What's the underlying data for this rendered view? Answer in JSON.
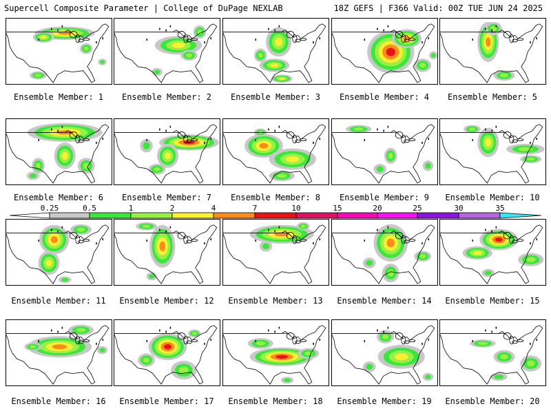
{
  "header": {
    "title_left": "Supercell Composite Parameter | College of DuPage NEXLAB",
    "title_right": "18Z GEFS | F366 Valid: 00Z TUE JUN 24 2025"
  },
  "member_label_prefix": "Ensemble Member: ",
  "members": [
    1,
    2,
    3,
    4,
    5,
    6,
    7,
    8,
    9,
    10,
    11,
    12,
    13,
    14,
    15,
    16,
    17,
    18,
    19,
    20
  ],
  "colorbar": {
    "ticks": [
      "0.25",
      "0.5",
      "1",
      "2",
      "4",
      "7",
      "10",
      "15",
      "20",
      "25",
      "30",
      "35"
    ],
    "colors": [
      "#c8c8c8",
      "#3ce63c",
      "#96f046",
      "#faf032",
      "#fa8c1e",
      "#e61414",
      "#dc1464",
      "#f50ab4",
      "#f514f0",
      "#8c14dc",
      "#b464dc",
      "#3ce6f0"
    ]
  },
  "map": {
    "land_color": "#ffffff",
    "border_color": "#000000",
    "water_color": "#000000"
  },
  "blobs": [
    [
      [
        0.55,
        0.22,
        0.28,
        0.1,
        3
      ],
      [
        0.35,
        0.28,
        0.1,
        0.08,
        2
      ],
      [
        0.75,
        0.45,
        0.06,
        0.08,
        1
      ],
      [
        0.3,
        0.85,
        0.08,
        0.06,
        1
      ],
      [
        0.9,
        0.65,
        0.04,
        0.05,
        0
      ]
    ],
    [
      [
        0.6,
        0.4,
        0.22,
        0.14,
        2
      ],
      [
        0.8,
        0.2,
        0.06,
        0.1,
        1
      ],
      [
        0.7,
        0.55,
        0.08,
        0.08,
        1
      ],
      [
        0.4,
        0.8,
        0.05,
        0.06,
        0
      ]
    ],
    [
      [
        0.52,
        0.35,
        0.12,
        0.22,
        2
      ],
      [
        0.48,
        0.7,
        0.14,
        0.1,
        2
      ],
      [
        0.55,
        0.9,
        0.1,
        0.06,
        2
      ],
      [
        0.35,
        0.55,
        0.06,
        0.1,
        1
      ]
    ],
    [
      [
        0.55,
        0.5,
        0.22,
        0.32,
        4
      ],
      [
        0.7,
        0.3,
        0.14,
        0.14,
        3
      ],
      [
        0.85,
        0.7,
        0.08,
        0.1,
        1
      ],
      [
        0.95,
        0.55,
        0.04,
        0.06,
        0
      ]
    ],
    [
      [
        0.45,
        0.35,
        0.1,
        0.3,
        3
      ],
      [
        0.5,
        0.15,
        0.08,
        0.1,
        1
      ],
      [
        0.6,
        0.85,
        0.1,
        0.08,
        1
      ]
    ],
    [
      [
        0.55,
        0.2,
        0.35,
        0.14,
        3
      ],
      [
        0.55,
        0.55,
        0.1,
        0.2,
        2
      ],
      [
        0.75,
        0.7,
        0.08,
        0.12,
        1
      ],
      [
        0.3,
        0.7,
        0.06,
        0.12,
        1
      ],
      [
        0.25,
        0.85,
        0.06,
        0.06,
        0
      ]
    ],
    [
      [
        0.7,
        0.35,
        0.28,
        0.12,
        4
      ],
      [
        0.5,
        0.55,
        0.1,
        0.18,
        2
      ],
      [
        0.4,
        0.75,
        0.08,
        0.08,
        1
      ],
      [
        0.3,
        0.4,
        0.06,
        0.1,
        0
      ]
    ],
    [
      [
        0.38,
        0.4,
        0.18,
        0.18,
        3
      ],
      [
        0.65,
        0.6,
        0.22,
        0.16,
        2
      ],
      [
        0.55,
        0.85,
        0.12,
        0.08,
        1
      ],
      [
        0.35,
        0.2,
        0.06,
        0.06,
        1
      ]
    ],
    [
      [
        0.25,
        0.15,
        0.12,
        0.06,
        1
      ],
      [
        0.55,
        0.55,
        0.06,
        0.12,
        1
      ],
      [
        0.9,
        0.7,
        0.05,
        0.08,
        0
      ],
      [
        0.45,
        0.75,
        0.06,
        0.08,
        0
      ]
    ],
    [
      [
        0.45,
        0.35,
        0.1,
        0.22,
        2
      ],
      [
        0.8,
        0.45,
        0.18,
        0.08,
        1
      ],
      [
        0.85,
        0.6,
        0.1,
        0.06,
        1
      ],
      [
        0.3,
        0.15,
        0.08,
        0.06,
        1
      ]
    ],
    [
      [
        0.45,
        0.3,
        0.14,
        0.22,
        3
      ],
      [
        0.4,
        0.65,
        0.1,
        0.18,
        2
      ],
      [
        0.7,
        0.15,
        0.1,
        0.08,
        1
      ],
      [
        0.55,
        0.9,
        0.06,
        0.05,
        0
      ]
    ],
    [
      [
        0.45,
        0.4,
        0.12,
        0.32,
        3
      ],
      [
        0.3,
        0.1,
        0.1,
        0.06,
        1
      ],
      [
        0.35,
        0.85,
        0.05,
        0.06,
        0
      ]
    ],
    [
      [
        0.55,
        0.22,
        0.3,
        0.14,
        3
      ],
      [
        0.4,
        0.4,
        0.06,
        0.08,
        0
      ],
      [
        0.75,
        0.1,
        0.06,
        0.06,
        1
      ]
    ],
    [
      [
        0.55,
        0.35,
        0.16,
        0.28,
        3
      ],
      [
        0.55,
        0.8,
        0.08,
        0.14,
        1
      ],
      [
        0.85,
        0.55,
        0.08,
        0.08,
        1
      ],
      [
        0.35,
        0.65,
        0.06,
        0.08,
        0
      ]
    ],
    [
      [
        0.55,
        0.3,
        0.18,
        0.16,
        4
      ],
      [
        0.35,
        0.5,
        0.14,
        0.1,
        2
      ],
      [
        0.85,
        0.6,
        0.12,
        0.1,
        1
      ],
      [
        0.45,
        0.8,
        0.06,
        0.06,
        0
      ]
    ],
    [
      [
        0.5,
        0.4,
        0.3,
        0.16,
        3
      ],
      [
        0.7,
        0.15,
        0.12,
        0.08,
        1
      ],
      [
        0.25,
        0.4,
        0.08,
        0.06,
        1
      ],
      [
        0.9,
        0.45,
        0.05,
        0.06,
        0
      ]
    ],
    [
      [
        0.5,
        0.4,
        0.18,
        0.2,
        4
      ],
      [
        0.65,
        0.75,
        0.12,
        0.14,
        1
      ],
      [
        0.3,
        0.6,
        0.08,
        0.1,
        1
      ],
      [
        0.75,
        0.2,
        0.06,
        0.06,
        1
      ]
    ],
    [
      [
        0.55,
        0.55,
        0.3,
        0.14,
        4
      ],
      [
        0.35,
        0.35,
        0.12,
        0.08,
        1
      ],
      [
        0.8,
        0.5,
        0.1,
        0.08,
        1
      ],
      [
        0.6,
        0.9,
        0.06,
        0.05,
        0
      ]
    ],
    [
      [
        0.65,
        0.55,
        0.22,
        0.18,
        2
      ],
      [
        0.5,
        0.25,
        0.08,
        0.1,
        1
      ],
      [
        0.35,
        0.7,
        0.06,
        0.08,
        0
      ],
      [
        0.9,
        0.85,
        0.05,
        0.06,
        0
      ]
    ],
    [
      [
        0.4,
        0.35,
        0.12,
        0.06,
        1
      ],
      [
        0.6,
        0.55,
        0.1,
        0.1,
        1
      ],
      [
        0.85,
        0.65,
        0.1,
        0.12,
        1
      ],
      [
        0.55,
        0.85,
        0.08,
        0.06,
        0
      ]
    ]
  ]
}
